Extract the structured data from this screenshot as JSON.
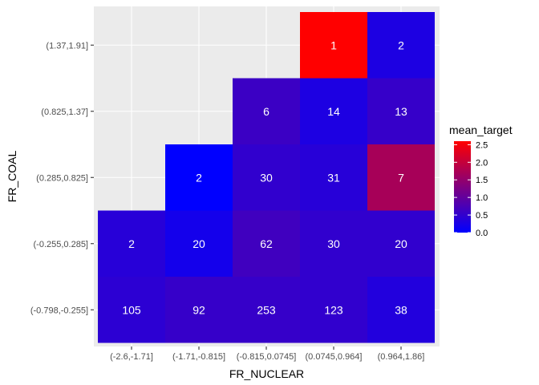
{
  "chart_data": {
    "type": "heatmap",
    "title": "",
    "xlabel": "FR_NUCLEAR",
    "ylabel": "FR_COAL",
    "x_categories": [
      "(-2.6,-1.71]",
      "(-1.71,-0.815]",
      "(-0.815,0.0745]",
      "(0.0745,0.964]",
      "(0.964,1.86]"
    ],
    "y_categories": [
      "(-0.798,-0.255]",
      "(-0.255,0.285]",
      "(0.285,0.825]",
      "(0.825,1.37]",
      "(1.37,1.91]"
    ],
    "cells": [
      {
        "x": "(-2.6,-1.71]",
        "y": "(-0.798,-0.255]",
        "count": 105,
        "mean_target": 0.45
      },
      {
        "x": "(-1.71,-0.815]",
        "y": "(-0.798,-0.255]",
        "count": 92,
        "mean_target": 0.55
      },
      {
        "x": "(-0.815,0.0745]",
        "y": "(-0.798,-0.255]",
        "count": 253,
        "mean_target": 0.55
      },
      {
        "x": "(0.0745,0.964]",
        "y": "(-0.798,-0.255]",
        "count": 123,
        "mean_target": 0.5
      },
      {
        "x": "(0.964,1.86]",
        "y": "(-0.798,-0.255]",
        "count": 38,
        "mean_target": 0.35
      },
      {
        "x": "(-2.6,-1.71]",
        "y": "(-0.255,0.285]",
        "count": 2,
        "mean_target": 0.4
      },
      {
        "x": "(-1.71,-0.815]",
        "y": "(-0.255,0.285]",
        "count": 20,
        "mean_target": 0.2
      },
      {
        "x": "(-0.815,0.0745]",
        "y": "(-0.255,0.285]",
        "count": 62,
        "mean_target": 0.65
      },
      {
        "x": "(0.0745,0.964]",
        "y": "(-0.255,0.285]",
        "count": 30,
        "mean_target": 0.5
      },
      {
        "x": "(0.964,1.86]",
        "y": "(-0.255,0.285]",
        "count": 20,
        "mean_target": 0.5
      },
      {
        "x": "(-1.71,-0.815]",
        "y": "(0.285,0.825]",
        "count": 2,
        "mean_target": 0.0
      },
      {
        "x": "(-0.815,0.0745]",
        "y": "(0.285,0.825]",
        "count": 30,
        "mean_target": 0.5
      },
      {
        "x": "(0.0745,0.964]",
        "y": "(0.285,0.825]",
        "count": 31,
        "mean_target": 0.4
      },
      {
        "x": "(0.964,1.86]",
        "y": "(0.285,0.825]",
        "count": 7,
        "mean_target": 1.7
      },
      {
        "x": "(-0.815,0.0745]",
        "y": "(0.825,1.37]",
        "count": 6,
        "mean_target": 0.6
      },
      {
        "x": "(0.0745,0.964]",
        "y": "(0.825,1.37]",
        "count": 14,
        "mean_target": 0.3
      },
      {
        "x": "(0.964,1.86]",
        "y": "(0.825,1.37]",
        "count": 13,
        "mean_target": 0.55
      },
      {
        "x": "(0.0745,0.964]",
        "y": "(1.37,1.91]",
        "count": 1,
        "mean_target": 2.6
      },
      {
        "x": "(0.964,1.86]",
        "y": "(1.37,1.91]",
        "count": 2,
        "mean_target": 0.3
      }
    ],
    "legend": {
      "title": "mean_target",
      "ticks": [
        "2.5",
        "2.0",
        "1.5",
        "1.0",
        "0.5",
        "0.0"
      ],
      "tick_values": [
        2.5,
        2.0,
        1.5,
        1.0,
        0.5,
        0.0
      ],
      "range": [
        0.0,
        2.6
      ],
      "low_color": "#0000ff",
      "high_color": "#ff0000",
      "position": "right"
    },
    "panel_background": "#ebebeb",
    "grid_color": "#ffffff",
    "grid": true
  }
}
